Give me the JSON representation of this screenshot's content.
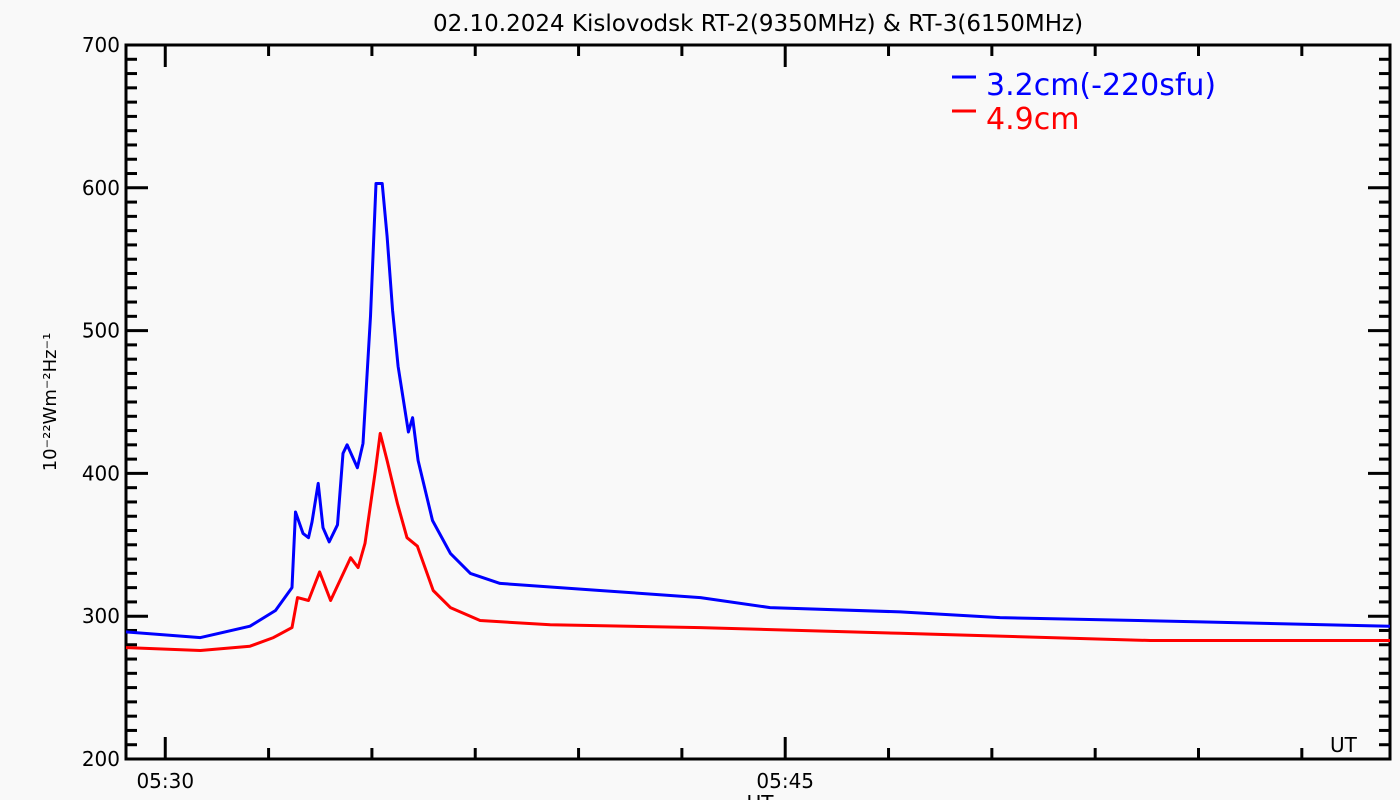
{
  "chart_data": {
    "type": "line",
    "title": "02.10.2024 Kislovodsk RT-2(9350MHz) & RT-3(6150MHz)",
    "xlabel": "UT",
    "ylabel": "10⁻²²Wm⁻²Hz⁻¹",
    "corner_label": "UT",
    "xlim": [
      "05:29:03",
      "05:59:38"
    ],
    "ylim": [
      200,
      700
    ],
    "x_ticks": [
      "05:30",
      "05:45"
    ],
    "x_minor_step_minutes": 2.5,
    "y_ticks": [
      200,
      300,
      400,
      500,
      600,
      700
    ],
    "y_minor_step": 10,
    "grid": false,
    "legend_placement": "top-right",
    "background": "#f9f9f9",
    "series": [
      {
        "name": "3.2cm(-220sfu)",
        "color": "#0000ff",
        "points": [
          [
            "05:29:03",
            289
          ],
          [
            "05:30:51",
            285
          ],
          [
            "05:32:03",
            293
          ],
          [
            "05:32:40",
            304
          ],
          [
            "05:33:04",
            320
          ],
          [
            "05:33:09",
            373
          ],
          [
            "05:33:20",
            358
          ],
          [
            "05:33:28",
            355
          ],
          [
            "05:33:33",
            366
          ],
          [
            "05:33:42",
            393
          ],
          [
            "05:33:49",
            362
          ],
          [
            "05:33:58",
            352
          ],
          [
            "05:34:10",
            364
          ],
          [
            "05:34:18",
            414
          ],
          [
            "05:34:24",
            420
          ],
          [
            "05:34:39",
            404
          ],
          [
            "05:34:47",
            421
          ],
          [
            "05:34:58",
            510
          ],
          [
            "05:35:06",
            603
          ],
          [
            "05:35:15",
            603
          ],
          [
            "05:35:22",
            566
          ],
          [
            "05:35:30",
            514
          ],
          [
            "05:35:38",
            475
          ],
          [
            "05:35:53",
            429
          ],
          [
            "05:35:59",
            439
          ],
          [
            "05:36:07",
            409
          ],
          [
            "05:36:28",
            367
          ],
          [
            "05:36:54",
            344
          ],
          [
            "05:37:23",
            330
          ],
          [
            "05:38:06",
            323
          ],
          [
            "05:40:31",
            318
          ],
          [
            "05:42:57",
            313
          ],
          [
            "05:44:38",
            306
          ],
          [
            "05:47:47",
            303
          ],
          [
            "05:50:12",
            299
          ],
          [
            "05:55:03",
            296
          ],
          [
            "05:59:38",
            293
          ]
        ]
      },
      {
        "name": "4.9cm",
        "color": "#ff0000",
        "points": [
          [
            "05:29:03",
            278
          ],
          [
            "05:30:51",
            276
          ],
          [
            "05:32:03",
            279
          ],
          [
            "05:32:37",
            285
          ],
          [
            "05:33:04",
            292
          ],
          [
            "05:33:12",
            313
          ],
          [
            "05:33:28",
            311
          ],
          [
            "05:33:44",
            331
          ],
          [
            "05:34:00",
            311
          ],
          [
            "05:34:29",
            341
          ],
          [
            "05:34:40",
            334
          ],
          [
            "05:34:50",
            351
          ],
          [
            "05:35:05",
            402
          ],
          [
            "05:35:12",
            428
          ],
          [
            "05:35:22",
            409
          ],
          [
            "05:35:37",
            379
          ],
          [
            "05:35:51",
            355
          ],
          [
            "05:36:06",
            349
          ],
          [
            "05:36:29",
            318
          ],
          [
            "05:36:54",
            306
          ],
          [
            "05:37:37",
            297
          ],
          [
            "05:39:19",
            294
          ],
          [
            "05:42:57",
            292
          ],
          [
            "05:47:47",
            288
          ],
          [
            "05:53:50",
            283
          ],
          [
            "05:59:38",
            283
          ]
        ]
      }
    ]
  }
}
